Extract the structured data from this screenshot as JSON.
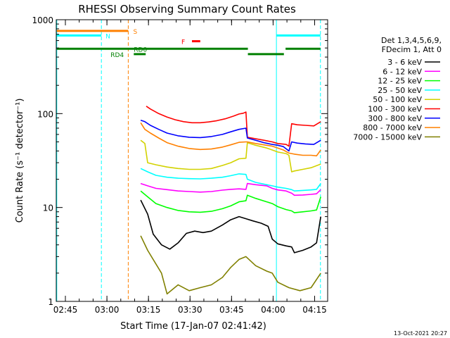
{
  "chart_data": {
    "type": "line",
    "title": "RHESSI Observing Summary Count Rates",
    "xlabel": "Start Time (17-Jan-07 02:41:42)",
    "ylabel": "Count Rate (s⁻¹ detector⁻¹)",
    "yscale": "log",
    "ylim": [
      1,
      1000
    ],
    "xlim_minutes": [
      0,
      98
    ],
    "x_ticks": [
      {
        "label": "02:45",
        "min": 3.3
      },
      {
        "label": "03:00",
        "min": 18.3
      },
      {
        "label": "03:15",
        "min": 33.3
      },
      {
        "label": "03:30",
        "min": 48.3
      },
      {
        "label": "03:45",
        "min": 63.3
      },
      {
        "label": "04:00",
        "min": 78.3
      },
      {
        "label": "04:15",
        "min": 93.3
      }
    ],
    "y_ticks": [
      {
        "label": "1",
        "value": 1
      },
      {
        "label": "10",
        "value": 10
      },
      {
        "label": "100",
        "value": 100
      },
      {
        "label": "1000",
        "value": 1000
      }
    ],
    "legend_header": [
      "Det 1,3,4,5,6,9,",
      "FDecim 1, Att 0"
    ],
    "series": [
      {
        "name": "3 - 6 keV",
        "color": "#000000",
        "points": [
          [
            30.5,
            12
          ],
          [
            33,
            8.5
          ],
          [
            35,
            5.2
          ],
          [
            38,
            4
          ],
          [
            41,
            3.6
          ],
          [
            44,
            4.2
          ],
          [
            47,
            5.3
          ],
          [
            50,
            5.6
          ],
          [
            53,
            5.4
          ],
          [
            56,
            5.6
          ],
          [
            60,
            6.5
          ],
          [
            63,
            7.4
          ],
          [
            66,
            8
          ],
          [
            68.5,
            7.6
          ],
          [
            71,
            7.2
          ],
          [
            74,
            6.8
          ],
          [
            76.5,
            6.3
          ],
          [
            78,
            4.6
          ],
          [
            80,
            4.1
          ],
          [
            83,
            3.9
          ],
          [
            85,
            3.8
          ],
          [
            86,
            3.3
          ],
          [
            89,
            3.5
          ],
          [
            92,
            3.8
          ],
          [
            94,
            4.2
          ],
          [
            95.5,
            8
          ]
        ]
      },
      {
        "name": "6 - 12 keV",
        "color": "#ff00ff",
        "points": [
          [
            30.5,
            18
          ],
          [
            33,
            17
          ],
          [
            36,
            16
          ],
          [
            40,
            15.5
          ],
          [
            44,
            15
          ],
          [
            48,
            14.8
          ],
          [
            52,
            14.6
          ],
          [
            56,
            14.8
          ],
          [
            60,
            15.3
          ],
          [
            63,
            15.6
          ],
          [
            66,
            15.8
          ],
          [
            68.5,
            15.6
          ],
          [
            69,
            18
          ],
          [
            72,
            17.5
          ],
          [
            76,
            17
          ],
          [
            78,
            16
          ],
          [
            80,
            15.4
          ],
          [
            83,
            15
          ],
          [
            85,
            14.2
          ],
          [
            86,
            13.5
          ],
          [
            89,
            13.6
          ],
          [
            92,
            13.8
          ],
          [
            94,
            14
          ],
          [
            95.5,
            15.5
          ]
        ]
      },
      {
        "name": "12 - 25 keV",
        "color": "#00ff00",
        "points": [
          [
            30.5,
            15
          ],
          [
            33,
            13
          ],
          [
            36,
            11
          ],
          [
            40,
            10
          ],
          [
            44,
            9.3
          ],
          [
            48,
            9
          ],
          [
            52,
            8.9
          ],
          [
            56,
            9.1
          ],
          [
            60,
            9.7
          ],
          [
            63,
            10.4
          ],
          [
            66,
            11.5
          ],
          [
            68.5,
            11.8
          ],
          [
            69,
            13.5
          ],
          [
            72,
            12.5
          ],
          [
            76,
            11.5
          ],
          [
            78,
            11
          ],
          [
            80,
            10.2
          ],
          [
            83,
            9.5
          ],
          [
            85,
            9.2
          ],
          [
            86,
            8.8
          ],
          [
            89,
            9
          ],
          [
            92,
            9.2
          ],
          [
            94,
            9.4
          ],
          [
            95.5,
            13
          ]
        ]
      },
      {
        "name": "25 - 50 keV",
        "color": "#00ffff",
        "points": [
          [
            30.5,
            26
          ],
          [
            33,
            24
          ],
          [
            36,
            22
          ],
          [
            40,
            21
          ],
          [
            44,
            20.5
          ],
          [
            48,
            20.3
          ],
          [
            52,
            20.2
          ],
          [
            56,
            20.5
          ],
          [
            60,
            21
          ],
          [
            63,
            21.8
          ],
          [
            66,
            22.8
          ],
          [
            68.5,
            22.5
          ],
          [
            69,
            20
          ],
          [
            72,
            18.5
          ],
          [
            76,
            17.5
          ],
          [
            78,
            17
          ],
          [
            80,
            16.5
          ],
          [
            83,
            16
          ],
          [
            85,
            15.5
          ],
          [
            86,
            15
          ],
          [
            89,
            15.2
          ],
          [
            92,
            15.4
          ],
          [
            94,
            15.6
          ],
          [
            95.5,
            18
          ]
        ]
      },
      {
        "name": "50 - 100 keV",
        "color": "#d2d200",
        "points": [
          [
            30.5,
            52
          ],
          [
            32,
            48
          ],
          [
            33,
            30
          ],
          [
            36,
            28.5
          ],
          [
            40,
            27
          ],
          [
            44,
            26
          ],
          [
            48,
            25.5
          ],
          [
            52,
            25.5
          ],
          [
            56,
            26
          ],
          [
            60,
            28
          ],
          [
            63,
            30
          ],
          [
            66,
            33
          ],
          [
            68.5,
            33.5
          ],
          [
            69,
            49
          ],
          [
            72,
            46
          ],
          [
            76,
            43
          ],
          [
            78,
            41
          ],
          [
            80,
            39
          ],
          [
            83,
            37.5
          ],
          [
            84,
            36
          ],
          [
            85,
            24
          ],
          [
            86,
            24.5
          ],
          [
            89,
            25.5
          ],
          [
            92,
            26.5
          ],
          [
            95.5,
            29
          ]
        ]
      },
      {
        "name": "100 - 300 keV",
        "color": "#ff0000",
        "points": [
          [
            32.5,
            120
          ],
          [
            34,
            112
          ],
          [
            37,
            100
          ],
          [
            40,
            92
          ],
          [
            43,
            86
          ],
          [
            46,
            82
          ],
          [
            49,
            80
          ],
          [
            52,
            80
          ],
          [
            55,
            81.5
          ],
          [
            58,
            84
          ],
          [
            61,
            88
          ],
          [
            64,
            94
          ],
          [
            66,
            99
          ],
          [
            67.5,
            101
          ],
          [
            68.5,
            104
          ],
          [
            69,
            56
          ],
          [
            72,
            54
          ],
          [
            75,
            52
          ],
          [
            78,
            50
          ],
          [
            80,
            48
          ],
          [
            83,
            47
          ],
          [
            84,
            45
          ],
          [
            85,
            78
          ],
          [
            87,
            76
          ],
          [
            90,
            75
          ],
          [
            93,
            74
          ],
          [
            95.5,
            82
          ]
        ]
      },
      {
        "name": "300 - 800 keV",
        "color": "#0000ff",
        "points": [
          [
            30.5,
            85
          ],
          [
            32,
            82
          ],
          [
            34,
            75
          ],
          [
            37,
            68
          ],
          [
            40,
            62
          ],
          [
            44,
            58
          ],
          [
            48,
            56
          ],
          [
            52,
            55.5
          ],
          [
            56,
            57
          ],
          [
            60,
            60
          ],
          [
            63,
            64
          ],
          [
            66,
            68
          ],
          [
            68.5,
            70
          ],
          [
            69,
            55
          ],
          [
            72,
            52
          ],
          [
            75,
            49
          ],
          [
            78,
            47
          ],
          [
            80,
            46
          ],
          [
            82,
            44.5
          ],
          [
            84,
            40
          ],
          [
            85,
            50
          ],
          [
            87,
            48.5
          ],
          [
            90,
            47.5
          ],
          [
            93,
            47
          ],
          [
            95.5,
            52
          ]
        ]
      },
      {
        "name": "800 - 7000 keV",
        "color": "#ff8000",
        "points": [
          [
            30.5,
            80
          ],
          [
            32,
            68
          ],
          [
            34,
            62
          ],
          [
            37,
            55
          ],
          [
            40,
            49
          ],
          [
            44,
            45
          ],
          [
            48,
            42.5
          ],
          [
            52,
            41.5
          ],
          [
            56,
            42
          ],
          [
            60,
            44
          ],
          [
            63,
            46.5
          ],
          [
            66,
            49.5
          ],
          [
            68.5,
            50
          ],
          [
            69,
            50
          ],
          [
            72,
            48
          ],
          [
            75,
            46.5
          ],
          [
            78,
            45
          ],
          [
            80,
            43
          ],
          [
            82,
            41
          ],
          [
            84,
            38
          ],
          [
            86,
            37
          ],
          [
            89,
            36
          ],
          [
            92,
            36
          ],
          [
            94,
            35.5
          ],
          [
            95.5,
            41
          ]
        ]
      },
      {
        "name": "7000 - 15000 keV",
        "color": "#808000",
        "points": [
          [
            30.5,
            5
          ],
          [
            33,
            3.5
          ],
          [
            36,
            2.5
          ],
          [
            38,
            2
          ],
          [
            40,
            1.2
          ],
          [
            44,
            1.5
          ],
          [
            48,
            1.3
          ],
          [
            52,
            1.4
          ],
          [
            56,
            1.5
          ],
          [
            60,
            1.8
          ],
          [
            63,
            2.3
          ],
          [
            66,
            2.8
          ],
          [
            68.5,
            3
          ],
          [
            72,
            2.4
          ],
          [
            76,
            2.1
          ],
          [
            78,
            2
          ],
          [
            80,
            1.6
          ],
          [
            84,
            1.4
          ],
          [
            88,
            1.3
          ],
          [
            92,
            1.4
          ],
          [
            95.5,
            2
          ]
        ]
      }
    ],
    "overlays": {
      "vertical_lines": [
        {
          "min": 0.2,
          "color": "#00ffff",
          "style": "solid"
        },
        {
          "min": 16.3,
          "color": "#00ffff",
          "style": "dashed"
        },
        {
          "min": 26.0,
          "color": "#ff8000",
          "style": "dashed"
        },
        {
          "min": 79.5,
          "color": "#00ffff",
          "style": "solid"
        },
        {
          "min": 95.4,
          "color": "#00ffff",
          "style": "dashed"
        }
      ],
      "bars": [
        {
          "label": "S",
          "color": "#ff8000",
          "start": 0.2,
          "end": 26.0,
          "level": 760,
          "label_min": 27.8
        },
        {
          "label": "N",
          "color": "#00ffff",
          "start": 0.2,
          "end": 16.3,
          "level": 680,
          "label_min": 17.8
        },
        {
          "label": "N",
          "color": "#00ffff",
          "start": 79.5,
          "end": 95.4,
          "level": 680,
          "label_min": null
        },
        {
          "label": "F",
          "color": "#ff0000",
          "start": 49.0,
          "end": 52.0,
          "level": 590,
          "label_min": 45.2
        },
        {
          "label": "RD0",
          "color": "#008000",
          "start": 0.2,
          "end": 69.2,
          "level": 490,
          "label_min": 28.0
        },
        {
          "label": "RD4",
          "color": "#008000",
          "start": 28.0,
          "end": 32.3,
          "level": 430,
          "label_min": 19.6
        },
        {
          "label": "",
          "color": "#008000",
          "start": 69.2,
          "end": 82.2,
          "level": 430,
          "label_min": null
        },
        {
          "label": "",
          "color": "#008000",
          "start": 82.8,
          "end": 95.4,
          "level": 490,
          "label_min": null
        }
      ]
    },
    "footer_date": "13-Oct-2021 20:27"
  }
}
